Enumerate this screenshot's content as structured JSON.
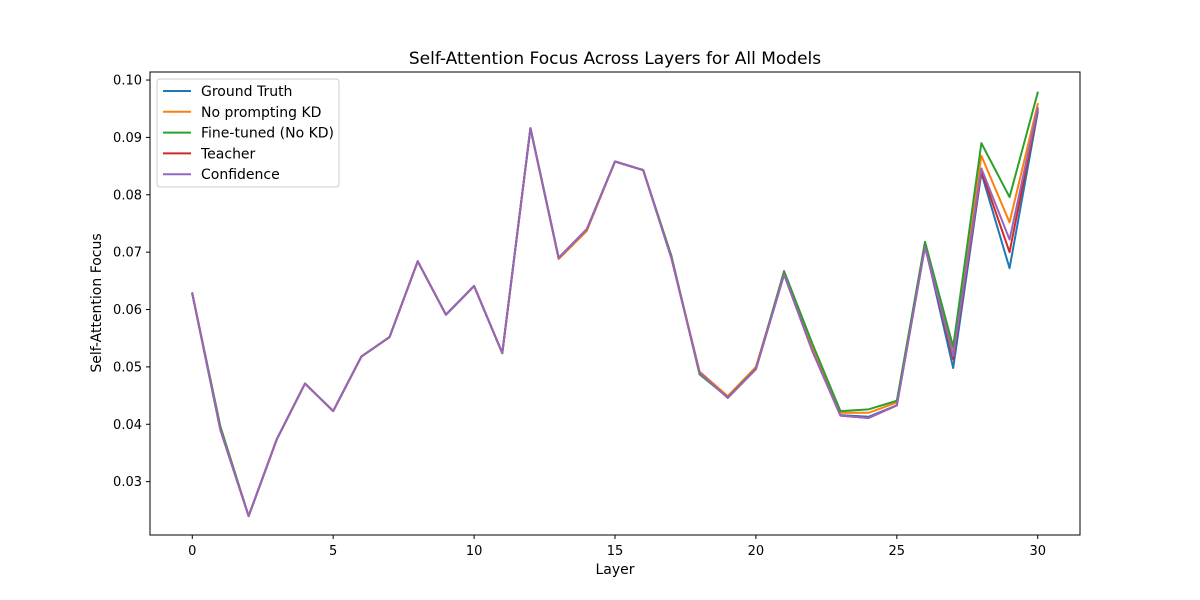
{
  "chart_data": {
    "type": "line",
    "title": "Self-Attention Focus Across Layers for All Models",
    "xlabel": "Layer",
    "ylabel": "Self-Attention Focus",
    "xlim": [
      -1.5,
      31.5
    ],
    "ylim": [
      0.0207,
      0.1014
    ],
    "xticks": [
      0,
      5,
      10,
      15,
      20,
      25,
      30
    ],
    "xtick_labels": [
      "0",
      "5",
      "10",
      "15",
      "20",
      "25",
      "30"
    ],
    "yticks": [
      0.03,
      0.04,
      0.05,
      0.06,
      0.07,
      0.08,
      0.09,
      0.1
    ],
    "ytick_labels": [
      "0.03",
      "0.04",
      "0.05",
      "0.06",
      "0.07",
      "0.08",
      "0.09",
      "0.10"
    ],
    "grid": false,
    "legend_position": "top-left",
    "x": [
      0,
      1,
      2,
      3,
      4,
      5,
      6,
      7,
      8,
      9,
      10,
      11,
      12,
      13,
      14,
      15,
      16,
      17,
      18,
      19,
      20,
      21,
      22,
      23,
      24,
      25,
      26,
      27,
      28,
      29,
      30
    ],
    "series": [
      {
        "name": "Ground Truth",
        "color": "#1f77b4",
        "values": [
          0.0628,
          0.039,
          0.024,
          0.0374,
          0.0471,
          0.0423,
          0.0518,
          0.0552,
          0.0684,
          0.0591,
          0.0641,
          0.0524,
          0.0916,
          0.069,
          0.074,
          0.0858,
          0.0843,
          0.069,
          0.049,
          0.0447,
          0.0497,
          0.0662,
          0.053,
          0.0416,
          0.0413,
          0.0433,
          0.0712,
          0.0498,
          0.0838,
          0.0672,
          0.0944
        ]
      },
      {
        "name": "No prompting KD",
        "color": "#ff7f0e",
        "values": [
          0.0628,
          0.0392,
          0.024,
          0.0374,
          0.0471,
          0.0423,
          0.0518,
          0.0552,
          0.0684,
          0.0591,
          0.0641,
          0.0524,
          0.0916,
          0.0688,
          0.0737,
          0.0858,
          0.0843,
          0.0692,
          0.0492,
          0.0449,
          0.05,
          0.0663,
          0.0536,
          0.042,
          0.042,
          0.0438,
          0.0714,
          0.0529,
          0.0868,
          0.0752,
          0.0958
        ]
      },
      {
        "name": "Fine-tuned (No KD)",
        "color": "#2ca02c",
        "values": [
          0.0628,
          0.0396,
          0.024,
          0.0374,
          0.0471,
          0.0423,
          0.0518,
          0.0552,
          0.0684,
          0.0591,
          0.0641,
          0.0524,
          0.0916,
          0.069,
          0.074,
          0.0858,
          0.0843,
          0.0694,
          0.0487,
          0.0447,
          0.0497,
          0.0667,
          0.0541,
          0.0423,
          0.0426,
          0.0441,
          0.0718,
          0.0535,
          0.089,
          0.0796,
          0.0978
        ]
      },
      {
        "name": "Teacher",
        "color": "#d62728",
        "values": [
          0.0628,
          0.039,
          0.024,
          0.0374,
          0.0471,
          0.0423,
          0.0518,
          0.0552,
          0.0684,
          0.0591,
          0.0641,
          0.0524,
          0.0916,
          0.069,
          0.074,
          0.0858,
          0.0843,
          0.069,
          0.049,
          0.0446,
          0.0496,
          0.0661,
          0.0528,
          0.0415,
          0.0411,
          0.0433,
          0.0709,
          0.0513,
          0.0842,
          0.07,
          0.0948
        ]
      },
      {
        "name": "Confidence",
        "color": "#9467bd",
        "values": [
          0.0628,
          0.039,
          0.024,
          0.0374,
          0.0471,
          0.0423,
          0.0518,
          0.0552,
          0.0684,
          0.0591,
          0.0641,
          0.0524,
          0.0916,
          0.069,
          0.074,
          0.0858,
          0.0843,
          0.069,
          0.049,
          0.0446,
          0.0496,
          0.0661,
          0.0528,
          0.0415,
          0.0411,
          0.0433,
          0.0709,
          0.0519,
          0.0846,
          0.0722,
          0.0951
        ]
      }
    ]
  }
}
